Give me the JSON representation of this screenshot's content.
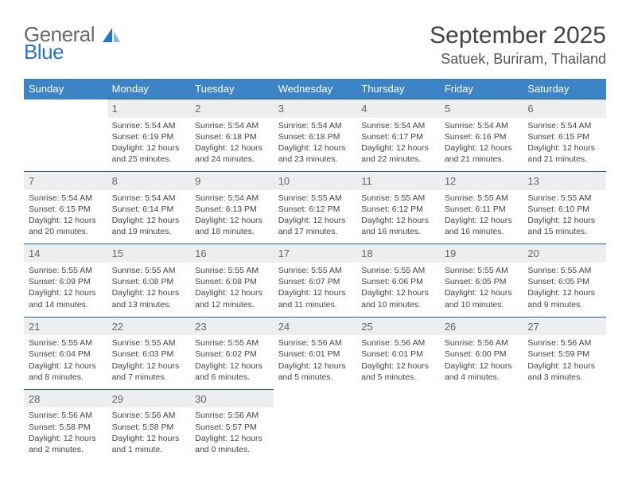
{
  "brand": {
    "name_top": "General",
    "name_bot": "Blue",
    "logo_fill": "#2b77bf"
  },
  "header": {
    "title": "September 2025",
    "location": "Satuek, Buriram, Thailand"
  },
  "calendar": {
    "background_color": "#ffffff",
    "header_bg": "#3c84c6",
    "header_text_color": "#ffffff",
    "daynum_bg": "#eceeef",
    "daynum_border": "#2b5d7f",
    "text_color": "#444444",
    "font_size_body": 10.5,
    "font_size_daynum": 13,
    "font_size_header": 13,
    "columns": [
      "Sunday",
      "Monday",
      "Tuesday",
      "Wednesday",
      "Thursday",
      "Friday",
      "Saturday"
    ],
    "weeks": [
      [
        null,
        {
          "n": "1",
          "sunrise": "Sunrise: 5:54 AM",
          "sunset": "Sunset: 6:19 PM",
          "day": "Daylight: 12 hours and 25 minutes."
        },
        {
          "n": "2",
          "sunrise": "Sunrise: 5:54 AM",
          "sunset": "Sunset: 6:18 PM",
          "day": "Daylight: 12 hours and 24 minutes."
        },
        {
          "n": "3",
          "sunrise": "Sunrise: 5:54 AM",
          "sunset": "Sunset: 6:18 PM",
          "day": "Daylight: 12 hours and 23 minutes."
        },
        {
          "n": "4",
          "sunrise": "Sunrise: 5:54 AM",
          "sunset": "Sunset: 6:17 PM",
          "day": "Daylight: 12 hours and 22 minutes."
        },
        {
          "n": "5",
          "sunrise": "Sunrise: 5:54 AM",
          "sunset": "Sunset: 6:16 PM",
          "day": "Daylight: 12 hours and 21 minutes."
        },
        {
          "n": "6",
          "sunrise": "Sunrise: 5:54 AM",
          "sunset": "Sunset: 6:15 PM",
          "day": "Daylight: 12 hours and 21 minutes."
        }
      ],
      [
        {
          "n": "7",
          "sunrise": "Sunrise: 5:54 AM",
          "sunset": "Sunset: 6:15 PM",
          "day": "Daylight: 12 hours and 20 minutes."
        },
        {
          "n": "8",
          "sunrise": "Sunrise: 5:54 AM",
          "sunset": "Sunset: 6:14 PM",
          "day": "Daylight: 12 hours and 19 minutes."
        },
        {
          "n": "9",
          "sunrise": "Sunrise: 5:54 AM",
          "sunset": "Sunset: 6:13 PM",
          "day": "Daylight: 12 hours and 18 minutes."
        },
        {
          "n": "10",
          "sunrise": "Sunrise: 5:55 AM",
          "sunset": "Sunset: 6:12 PM",
          "day": "Daylight: 12 hours and 17 minutes."
        },
        {
          "n": "11",
          "sunrise": "Sunrise: 5:55 AM",
          "sunset": "Sunset: 6:12 PM",
          "day": "Daylight: 12 hours and 16 minutes."
        },
        {
          "n": "12",
          "sunrise": "Sunrise: 5:55 AM",
          "sunset": "Sunset: 6:11 PM",
          "day": "Daylight: 12 hours and 16 minutes."
        },
        {
          "n": "13",
          "sunrise": "Sunrise: 5:55 AM",
          "sunset": "Sunset: 6:10 PM",
          "day": "Daylight: 12 hours and 15 minutes."
        }
      ],
      [
        {
          "n": "14",
          "sunrise": "Sunrise: 5:55 AM",
          "sunset": "Sunset: 6:09 PM",
          "day": "Daylight: 12 hours and 14 minutes."
        },
        {
          "n": "15",
          "sunrise": "Sunrise: 5:55 AM",
          "sunset": "Sunset: 6:08 PM",
          "day": "Daylight: 12 hours and 13 minutes."
        },
        {
          "n": "16",
          "sunrise": "Sunrise: 5:55 AM",
          "sunset": "Sunset: 6:08 PM",
          "day": "Daylight: 12 hours and 12 minutes."
        },
        {
          "n": "17",
          "sunrise": "Sunrise: 5:55 AM",
          "sunset": "Sunset: 6:07 PM",
          "day": "Daylight: 12 hours and 11 minutes."
        },
        {
          "n": "18",
          "sunrise": "Sunrise: 5:55 AM",
          "sunset": "Sunset: 6:06 PM",
          "day": "Daylight: 12 hours and 10 minutes."
        },
        {
          "n": "19",
          "sunrise": "Sunrise: 5:55 AM",
          "sunset": "Sunset: 6:05 PM",
          "day": "Daylight: 12 hours and 10 minutes."
        },
        {
          "n": "20",
          "sunrise": "Sunrise: 5:55 AM",
          "sunset": "Sunset: 6:05 PM",
          "day": "Daylight: 12 hours and 9 minutes."
        }
      ],
      [
        {
          "n": "21",
          "sunrise": "Sunrise: 5:55 AM",
          "sunset": "Sunset: 6:04 PM",
          "day": "Daylight: 12 hours and 8 minutes."
        },
        {
          "n": "22",
          "sunrise": "Sunrise: 5:55 AM",
          "sunset": "Sunset: 6:03 PM",
          "day": "Daylight: 12 hours and 7 minutes."
        },
        {
          "n": "23",
          "sunrise": "Sunrise: 5:55 AM",
          "sunset": "Sunset: 6:02 PM",
          "day": "Daylight: 12 hours and 6 minutes."
        },
        {
          "n": "24",
          "sunrise": "Sunrise: 5:56 AM",
          "sunset": "Sunset: 6:01 PM",
          "day": "Daylight: 12 hours and 5 minutes."
        },
        {
          "n": "25",
          "sunrise": "Sunrise: 5:56 AM",
          "sunset": "Sunset: 6:01 PM",
          "day": "Daylight: 12 hours and 5 minutes."
        },
        {
          "n": "26",
          "sunrise": "Sunrise: 5:56 AM",
          "sunset": "Sunset: 6:00 PM",
          "day": "Daylight: 12 hours and 4 minutes."
        },
        {
          "n": "27",
          "sunrise": "Sunrise: 5:56 AM",
          "sunset": "Sunset: 5:59 PM",
          "day": "Daylight: 12 hours and 3 minutes."
        }
      ],
      [
        {
          "n": "28",
          "sunrise": "Sunrise: 5:56 AM",
          "sunset": "Sunset: 5:58 PM",
          "day": "Daylight: 12 hours and 2 minutes."
        },
        {
          "n": "29",
          "sunrise": "Sunrise: 5:56 AM",
          "sunset": "Sunset: 5:58 PM",
          "day": "Daylight: 12 hours and 1 minute."
        },
        {
          "n": "30",
          "sunrise": "Sunrise: 5:56 AM",
          "sunset": "Sunset: 5:57 PM",
          "day": "Daylight: 12 hours and 0 minutes."
        },
        null,
        null,
        null,
        null
      ]
    ]
  }
}
